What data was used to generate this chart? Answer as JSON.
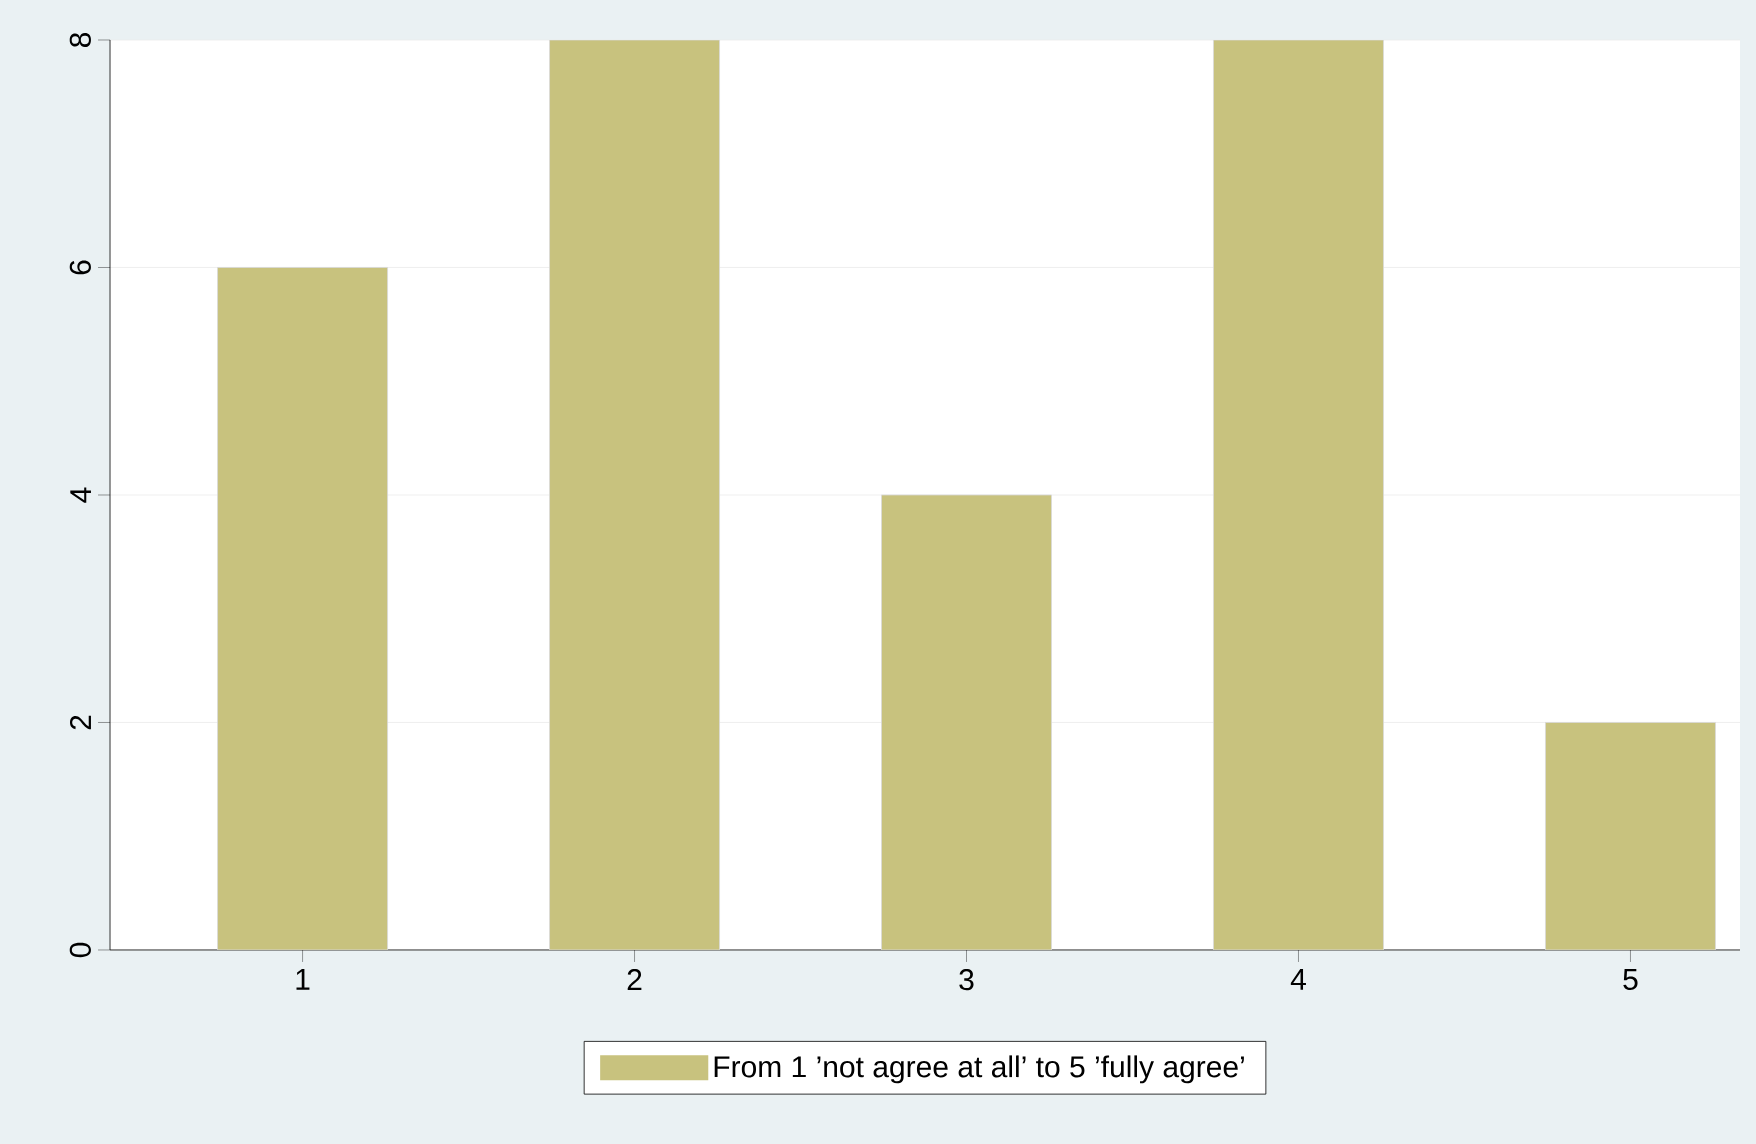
{
  "chart_data": {
    "type": "bar",
    "categories": [
      "1",
      "2",
      "3",
      "4",
      "5"
    ],
    "series": [
      {
        "name": "From 1 ’not agree at all’ to 5 ’fully agree’",
        "color": "#c8c27e",
        "values": [
          6,
          8,
          4,
          8,
          2
        ]
      }
    ],
    "ylim": [
      0,
      8
    ],
    "yticks": [
      0,
      2,
      4,
      6,
      8
    ],
    "grid": "y",
    "legend": "bottom"
  }
}
